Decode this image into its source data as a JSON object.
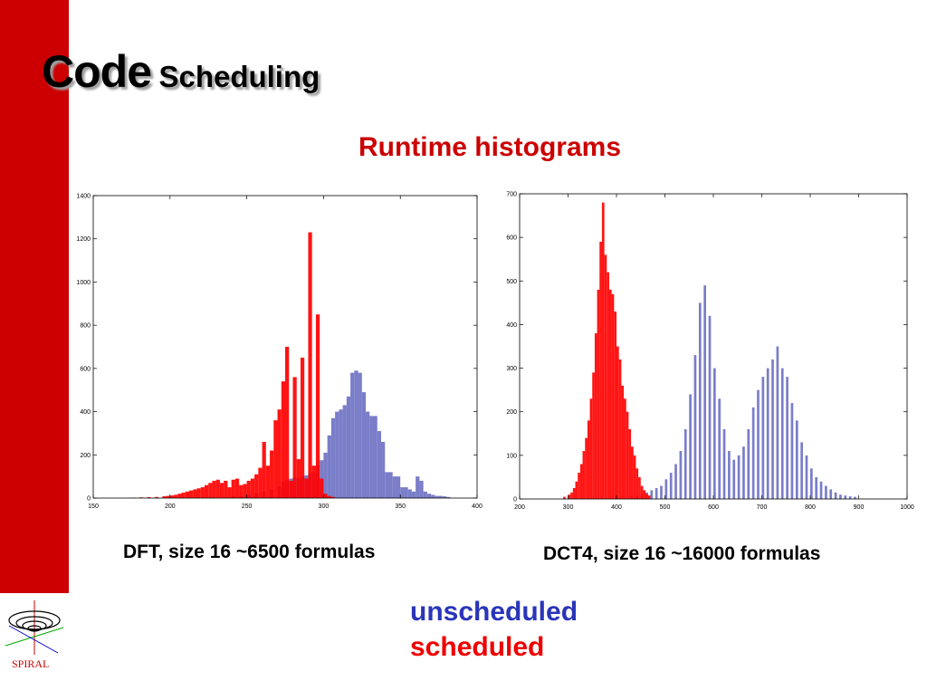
{
  "slide": {
    "title_big": "Code",
    "title_small": "Scheduling",
    "subtitle": "Runtime histograms",
    "legend": {
      "unscheduled": "unscheduled",
      "scheduled": "scheduled"
    },
    "logo_text": "SPIRAL",
    "colors": {
      "unscheduled": "#7a7dc8",
      "scheduled": "#ff0000",
      "overlap": "#6a0040",
      "accent": "#cc0000"
    }
  },
  "chart_data": [
    {
      "type": "bar",
      "caption": "DFT, size 16 ~6500 formulas",
      "xlim": [
        150,
        400
      ],
      "ylim": [
        0,
        1400
      ],
      "xticks": [
        150,
        200,
        250,
        300,
        350,
        400
      ],
      "yticks": [
        0,
        200,
        400,
        600,
        800,
        1000,
        1200,
        1400
      ],
      "bin_width": 2.5,
      "series": [
        {
          "key": "unscheduled",
          "bins": [
            [
              240,
              8
            ],
            [
              245,
              10
            ],
            [
              250,
              15
            ],
            [
              255,
              22
            ],
            [
              260,
              30
            ],
            [
              265,
              40
            ],
            [
              270,
              55
            ],
            [
              272.5,
              75
            ],
            [
              275,
              85
            ],
            [
              277.5,
              90
            ],
            [
              280,
              95
            ],
            [
              282.5,
              90
            ],
            [
              285,
              100
            ],
            [
              287.5,
              105
            ],
            [
              290,
              115
            ],
            [
              292.5,
              120
            ],
            [
              295,
              150
            ],
            [
              297.5,
              175
            ],
            [
              300,
              210
            ],
            [
              302.5,
              290
            ],
            [
              305,
              370
            ],
            [
              307.5,
              400
            ],
            [
              310,
              410
            ],
            [
              312.5,
              430
            ],
            [
              315,
              470
            ],
            [
              317.5,
              580
            ],
            [
              320,
              590
            ],
            [
              322.5,
              580
            ],
            [
              325,
              490
            ],
            [
              327.5,
              400
            ],
            [
              330,
              380
            ],
            [
              332.5,
              380
            ],
            [
              335,
              310
            ],
            [
              337.5,
              260
            ],
            [
              340,
              120
            ],
            [
              342.5,
              120
            ],
            [
              345,
              100
            ],
            [
              347.5,
              100
            ],
            [
              350,
              50
            ],
            [
              352.5,
              50
            ],
            [
              355,
              40
            ],
            [
              357.5,
              30
            ],
            [
              360,
              100
            ],
            [
              362.5,
              80
            ],
            [
              365,
              30
            ],
            [
              367.5,
              20
            ],
            [
              370,
              15
            ],
            [
              372.5,
              10
            ],
            [
              375,
              10
            ],
            [
              377.5,
              8
            ],
            [
              380,
              5
            ]
          ]
        },
        {
          "key": "scheduled",
          "bins": [
            [
              175,
              2
            ],
            [
              180,
              3
            ],
            [
              185,
              4
            ],
            [
              190,
              5
            ],
            [
              195,
              8
            ],
            [
              197.5,
              10
            ],
            [
              200,
              12
            ],
            [
              202.5,
              15
            ],
            [
              205,
              20
            ],
            [
              207.5,
              25
            ],
            [
              210,
              30
            ],
            [
              212.5,
              35
            ],
            [
              215,
              40
            ],
            [
              217.5,
              45
            ],
            [
              220,
              50
            ],
            [
              222.5,
              60
            ],
            [
              225,
              70
            ],
            [
              227.5,
              80
            ],
            [
              230,
              85
            ],
            [
              232.5,
              70
            ],
            [
              235,
              80
            ],
            [
              237.5,
              50
            ],
            [
              240,
              85
            ],
            [
              242.5,
              90
            ],
            [
              245,
              60
            ],
            [
              247.5,
              65
            ],
            [
              250,
              80
            ],
            [
              252.5,
              90
            ],
            [
              255,
              110
            ],
            [
              257.5,
              140
            ],
            [
              260,
              260
            ],
            [
              262.5,
              150
            ],
            [
              265,
              220
            ],
            [
              267.5,
              360
            ],
            [
              270,
              410
            ],
            [
              272.5,
              540
            ],
            [
              275,
              700
            ],
            [
              277.5,
              80
            ],
            [
              280,
              560
            ],
            [
              282.5,
              180
            ],
            [
              285,
              650
            ],
            [
              287.5,
              90
            ],
            [
              290,
              1230
            ],
            [
              292.5,
              150
            ],
            [
              295,
              850
            ],
            [
              297.5,
              90
            ],
            [
              300,
              20
            ],
            [
              302.5,
              10
            ],
            [
              305,
              5
            ]
          ]
        }
      ]
    },
    {
      "type": "bar",
      "caption": "DCT4, size 16 ~16000 formulas",
      "xlim": [
        200,
        1000
      ],
      "ylim": [
        0,
        700
      ],
      "xticks": [
        200,
        300,
        400,
        500,
        600,
        700,
        800,
        900,
        1000
      ],
      "yticks": [
        0,
        100,
        200,
        300,
        400,
        500,
        600,
        700
      ],
      "bin_width": 5,
      "series": [
        {
          "key": "unscheduled",
          "bins": [
            [
              430,
              5
            ],
            [
              440,
              8
            ],
            [
              450,
              10
            ],
            [
              460,
              15
            ],
            [
              470,
              20
            ],
            [
              480,
              25
            ],
            [
              490,
              30
            ],
            [
              500,
              45
            ],
            [
              510,
              60
            ],
            [
              520,
              80
            ],
            [
              530,
              110
            ],
            [
              540,
              160
            ],
            [
              550,
              240
            ],
            [
              560,
              330
            ],
            [
              570,
              450
            ],
            [
              580,
              490
            ],
            [
              590,
              420
            ],
            [
              600,
              300
            ],
            [
              610,
              230
            ],
            [
              620,
              160
            ],
            [
              630,
              110
            ],
            [
              640,
              90
            ],
            [
              650,
              100
            ],
            [
              660,
              120
            ],
            [
              670,
              160
            ],
            [
              680,
              210
            ],
            [
              690,
              250
            ],
            [
              700,
              280
            ],
            [
              710,
              300
            ],
            [
              720,
              320
            ],
            [
              730,
              350
            ],
            [
              740,
              300
            ],
            [
              750,
              280
            ],
            [
              760,
              220
            ],
            [
              770,
              180
            ],
            [
              780,
              130
            ],
            [
              790,
              100
            ],
            [
              800,
              70
            ],
            [
              810,
              50
            ],
            [
              820,
              40
            ],
            [
              830,
              30
            ],
            [
              840,
              22
            ],
            [
              850,
              15
            ],
            [
              860,
              10
            ],
            [
              870,
              8
            ],
            [
              880,
              6
            ],
            [
              890,
              5
            ]
          ]
        },
        {
          "key": "scheduled",
          "bins": [
            [
              290,
              5
            ],
            [
              300,
              10
            ],
            [
              305,
              15
            ],
            [
              310,
              25
            ],
            [
              315,
              40
            ],
            [
              320,
              60
            ],
            [
              325,
              80
            ],
            [
              330,
              110
            ],
            [
              335,
              140
            ],
            [
              340,
              180
            ],
            [
              345,
              230
            ],
            [
              350,
              290
            ],
            [
              355,
              380
            ],
            [
              360,
              480
            ],
            [
              365,
              590
            ],
            [
              370,
              680
            ],
            [
              375,
              560
            ],
            [
              380,
              520
            ],
            [
              385,
              480
            ],
            [
              390,
              470
            ],
            [
              395,
              430
            ],
            [
              400,
              350
            ],
            [
              405,
              320
            ],
            [
              410,
              260
            ],
            [
              415,
              230
            ],
            [
              420,
              200
            ],
            [
              425,
              160
            ],
            [
              430,
              120
            ],
            [
              435,
              100
            ],
            [
              440,
              70
            ],
            [
              445,
              50
            ],
            [
              450,
              30
            ],
            [
              455,
              20
            ],
            [
              460,
              12
            ],
            [
              465,
              8
            ]
          ]
        }
      ]
    }
  ]
}
